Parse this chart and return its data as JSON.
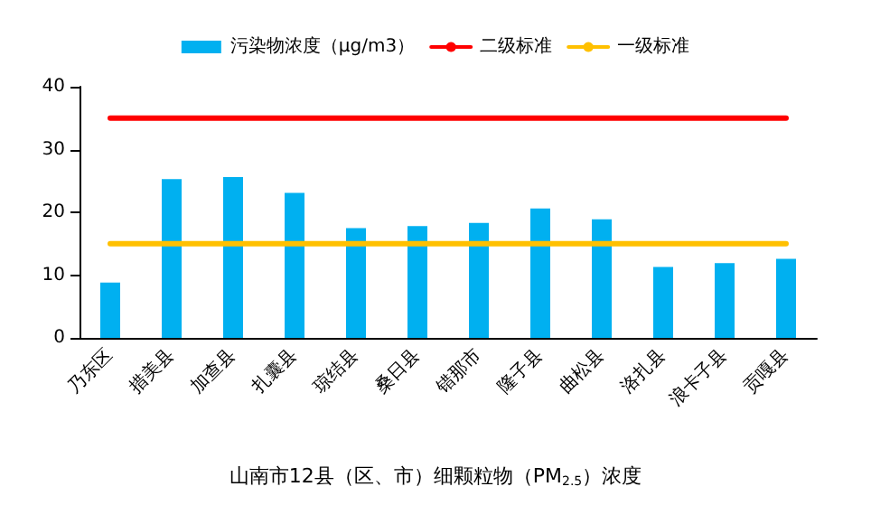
{
  "chart_data": {
    "type": "bar",
    "title": "山南市12县（区、市）细颗粒物（PM$_{2.5}$）浓度",
    "categories": [
      "乃东区",
      "措美县",
      "加查县",
      "扎囊县",
      "琼结县",
      "桑日县",
      "错那市",
      "隆子县",
      "曲松县",
      "洛扎县",
      "浪卡子县",
      "贡嘎县"
    ],
    "series": [
      {
        "name": "污染物浓度（μg/m3）",
        "color": "#00b0f0",
        "values": [
          8.8,
          25.3,
          25.6,
          23.1,
          17.5,
          17.8,
          18.3,
          20.6,
          18.9,
          11.3,
          11.9,
          12.6
        ]
      },
      {
        "name": "二级标准",
        "type": "line",
        "color": "#ff0000",
        "values": [
          35,
          35,
          35,
          35,
          35,
          35,
          35,
          35,
          35,
          35,
          35,
          35
        ]
      },
      {
        "name": "一级标准",
        "type": "line",
        "color": "#ffc000",
        "values": [
          15,
          15,
          15,
          15,
          15,
          15,
          15,
          15,
          15,
          15,
          15,
          15
        ]
      }
    ],
    "ylim": [
      0,
      40
    ],
    "yticks": [
      0,
      10,
      20,
      30,
      40
    ],
    "grid": false,
    "legend": "top",
    "marker": "none"
  }
}
